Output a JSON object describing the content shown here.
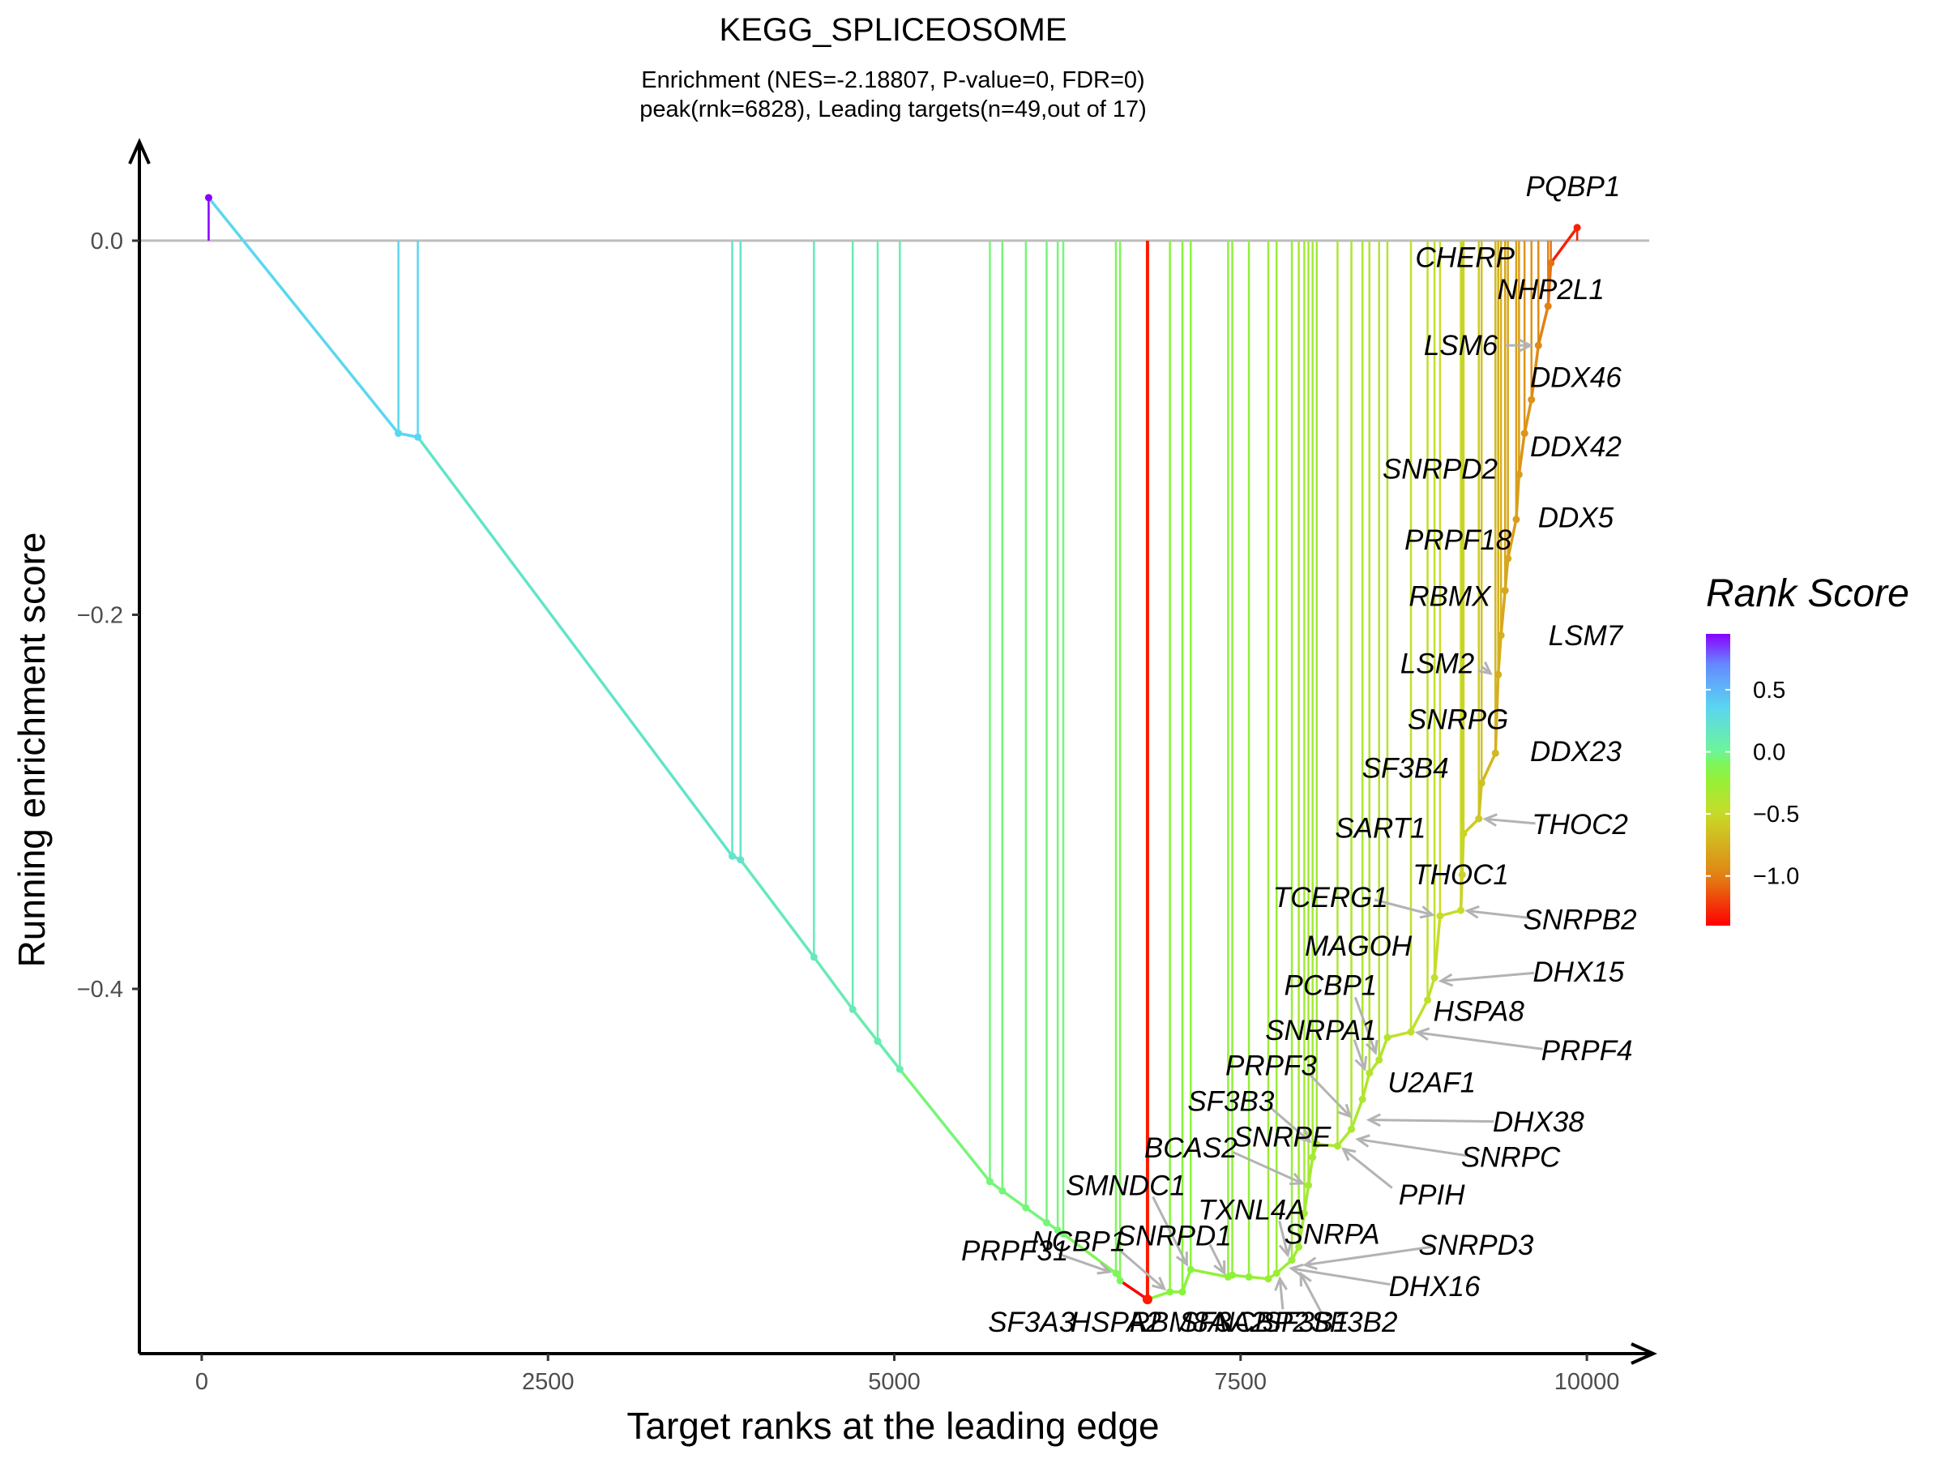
{
  "chart_data": {
    "type": "line",
    "title": "KEGG_SPLICEOSOME",
    "subtitle_line1": "Enrichment (NES=-2.18807, P-value=0, FDR=0)",
    "subtitle_line2": "peak(rnk=6828), Leading targets(n=49,out of 17)",
    "xlabel": "Target ranks at the leading edge",
    "ylabel": "Running enrichment score",
    "xlim": [
      -450,
      10450
    ],
    "ylim": [
      -0.595,
      0.055
    ],
    "xticks": [
      0,
      2500,
      5000,
      7500,
      10000
    ],
    "xtick_labels": [
      "0",
      "2500",
      "5000",
      "7500",
      "10000"
    ],
    "yticks": [
      0.0,
      -0.2,
      -0.4
    ],
    "ytick_labels": [
      "0.0",
      "−0.2",
      "−0.4"
    ],
    "baseline": 0.0,
    "peak": {
      "rank": 6828,
      "score": -0.566,
      "color": "#ff1a00"
    },
    "hits": [
      {
        "x": 50,
        "y": 0.023,
        "rank_score": 0.95
      },
      {
        "x": 1420,
        "y": -0.103,
        "rank_score": 0.35
      },
      {
        "x": 1560,
        "y": -0.105,
        "rank_score": 0.35
      },
      {
        "x": 3830,
        "y": -0.329,
        "rank_score": 0.2
      },
      {
        "x": 3890,
        "y": -0.331,
        "rank_score": 0.2
      },
      {
        "x": 4420,
        "y": -0.383,
        "rank_score": 0.15
      },
      {
        "x": 4700,
        "y": -0.411,
        "rank_score": 0.12
      },
      {
        "x": 4880,
        "y": -0.428,
        "rank_score": 0.1
      },
      {
        "x": 5040,
        "y": -0.443,
        "rank_score": 0.1
      },
      {
        "x": 5690,
        "y": -0.503,
        "rank_score": -0.05
      },
      {
        "x": 5780,
        "y": -0.508,
        "rank_score": -0.05
      },
      {
        "x": 5950,
        "y": -0.517,
        "rank_score": -0.05
      },
      {
        "x": 6100,
        "y": -0.525,
        "rank_score": -0.05
      },
      {
        "x": 6180,
        "y": -0.529,
        "rank_score": -0.05
      },
      {
        "x": 6220,
        "y": -0.531,
        "rank_score": -0.05
      },
      {
        "x": 6600,
        "y": -0.552,
        "rank_score": -0.1
      },
      {
        "x": 6630,
        "y": -0.556,
        "rank_score": -0.1
      },
      {
        "x": 6828,
        "y": -0.566,
        "rank_score": -1.4
      },
      {
        "x": 6990,
        "y": -0.562,
        "rank_score": -0.15
      },
      {
        "x": 7080,
        "y": -0.562,
        "rank_score": -0.15
      },
      {
        "x": 7140,
        "y": -0.55,
        "rank_score": -0.15
      },
      {
        "x": 7410,
        "y": -0.554,
        "rank_score": -0.2
      },
      {
        "x": 7440,
        "y": -0.553,
        "rank_score": -0.2
      },
      {
        "x": 7560,
        "y": -0.554,
        "rank_score": -0.2
      },
      {
        "x": 7700,
        "y": -0.555,
        "rank_score": -0.25
      },
      {
        "x": 7760,
        "y": -0.552,
        "rank_score": -0.25
      },
      {
        "x": 7870,
        "y": -0.545,
        "rank_score": -0.25
      },
      {
        "x": 7920,
        "y": -0.538,
        "rank_score": -0.3
      },
      {
        "x": 7960,
        "y": -0.52,
        "rank_score": -0.3
      },
      {
        "x": 7990,
        "y": -0.505,
        "rank_score": -0.3
      },
      {
        "x": 8020,
        "y": -0.49,
        "rank_score": -0.3
      },
      {
        "x": 8050,
        "y": -0.483,
        "rank_score": -0.3
      },
      {
        "x": 8200,
        "y": -0.484,
        "rank_score": -0.35
      },
      {
        "x": 8300,
        "y": -0.475,
        "rank_score": -0.35
      },
      {
        "x": 8380,
        "y": -0.459,
        "rank_score": -0.35
      },
      {
        "x": 8430,
        "y": -0.445,
        "rank_score": -0.4
      },
      {
        "x": 8500,
        "y": -0.438,
        "rank_score": -0.4
      },
      {
        "x": 8560,
        "y": -0.426,
        "rank_score": -0.4
      },
      {
        "x": 8730,
        "y": -0.423,
        "rank_score": -0.45
      },
      {
        "x": 8850,
        "y": -0.406,
        "rank_score": -0.45
      },
      {
        "x": 8900,
        "y": -0.394,
        "rank_score": -0.45
      },
      {
        "x": 8940,
        "y": -0.361,
        "rank_score": -0.5
      },
      {
        "x": 9090,
        "y": -0.358,
        "rank_score": -0.5
      },
      {
        "x": 9100,
        "y": -0.339,
        "rank_score": -0.55
      },
      {
        "x": 9110,
        "y": -0.317,
        "rank_score": -0.55
      },
      {
        "x": 9220,
        "y": -0.309,
        "rank_score": -0.6
      },
      {
        "x": 9240,
        "y": -0.29,
        "rank_score": -0.65
      },
      {
        "x": 9340,
        "y": -0.274,
        "rank_score": -0.7
      },
      {
        "x": 9360,
        "y": -0.232,
        "rank_score": -0.75
      },
      {
        "x": 9380,
        "y": -0.211,
        "rank_score": -0.75
      },
      {
        "x": 9410,
        "y": -0.187,
        "rank_score": -0.8
      },
      {
        "x": 9430,
        "y": -0.17,
        "rank_score": -0.8
      },
      {
        "x": 9490,
        "y": -0.149,
        "rank_score": -0.85
      },
      {
        "x": 9510,
        "y": -0.125,
        "rank_score": -0.85
      },
      {
        "x": 9550,
        "y": -0.103,
        "rank_score": -0.9
      },
      {
        "x": 9600,
        "y": -0.085,
        "rank_score": -0.9
      },
      {
        "x": 9650,
        "y": -0.056,
        "rank_score": -0.95
      },
      {
        "x": 9720,
        "y": -0.035,
        "rank_score": -1.0
      },
      {
        "x": 9740,
        "y": -0.012,
        "rank_score": -1.05
      },
      {
        "x": 9930,
        "y": 0.007,
        "rank_score": -1.3
      }
    ],
    "colorbar": {
      "title": "Rank Score",
      "min": -1.4,
      "max": 0.95,
      "ticks": [
        0.5,
        0.0,
        -0.5,
        -1.0
      ],
      "tick_labels": [
        "0.5",
        "0.0",
        "−0.5",
        "−1.0"
      ]
    },
    "gene_labels": [
      {
        "label": "PQBP1",
        "tx": 9900,
        "ty": 0.029,
        "ax": 9925,
        "ay": 0.009,
        "arrow": true
      },
      {
        "label": "CHERP",
        "tx": 9120,
        "ty": -0.009,
        "ax": 9730,
        "ay": -0.012,
        "arrow": false
      },
      {
        "label": "NHP2L1",
        "tx": 9740,
        "ty": -0.026,
        "ax": 9720,
        "ay": -0.034,
        "arrow": false
      },
      {
        "label": "LSM6",
        "tx": 9090,
        "ty": -0.056,
        "ax": 9640,
        "ay": -0.056,
        "arrow": true
      },
      {
        "label": "DDX46",
        "tx": 9920,
        "ty": -0.073,
        "ax": 9600,
        "ay": -0.085,
        "arrow": false
      },
      {
        "label": "DDX42",
        "tx": 9920,
        "ty": -0.11,
        "ax": 9550,
        "ay": -0.103,
        "arrow": false
      },
      {
        "label": "SNRPD2",
        "tx": 8940,
        "ty": -0.122,
        "ax": 9510,
        "ay": -0.125,
        "arrow": false
      },
      {
        "label": "DDX5",
        "tx": 9920,
        "ty": -0.148,
        "ax": 9490,
        "ay": -0.149,
        "arrow": false
      },
      {
        "label": "PRPF18",
        "tx": 9070,
        "ty": -0.16,
        "ax": 9420,
        "ay": -0.17,
        "arrow": false
      },
      {
        "label": "RBMX",
        "tx": 9010,
        "ty": -0.19,
        "ax": 9410,
        "ay": -0.187,
        "arrow": false
      },
      {
        "label": "LSM7",
        "tx": 9990,
        "ty": -0.211,
        "ax": 9380,
        "ay": -0.211,
        "arrow": false
      },
      {
        "label": "LSM2",
        "tx": 8920,
        "ty": -0.226,
        "ax": 9350,
        "ay": -0.232,
        "arrow": true
      },
      {
        "label": "SNRPG",
        "tx": 9070,
        "ty": -0.256,
        "ax": 9340,
        "ay": -0.262,
        "arrow": false
      },
      {
        "label": "DDX23",
        "tx": 9920,
        "ty": -0.273,
        "ax": 9340,
        "ay": -0.274,
        "arrow": false
      },
      {
        "label": "SF3B4",
        "tx": 8690,
        "ty": -0.282,
        "ax": 9240,
        "ay": -0.29,
        "arrow": false
      },
      {
        "label": "THOC2",
        "tx": 9950,
        "ty": -0.312,
        "ax": 9220,
        "ay": -0.309,
        "arrow": true
      },
      {
        "label": "SART1",
        "tx": 8510,
        "ty": -0.314,
        "ax": 9110,
        "ay": -0.317,
        "arrow": false
      },
      {
        "label": "THOC1",
        "tx": 9090,
        "ty": -0.339,
        "ax": 9100,
        "ay": -0.339,
        "arrow": false
      },
      {
        "label": "TCERG1",
        "tx": 8150,
        "ty": -0.351,
        "ax": 8930,
        "ay": -0.361,
        "arrow": true
      },
      {
        "label": "SNRPB2",
        "tx": 9950,
        "ty": -0.363,
        "ax": 9090,
        "ay": -0.358,
        "arrow": true
      },
      {
        "label": "MAGOH",
        "tx": 8350,
        "ty": -0.377,
        "ax": 8940,
        "ay": -0.361,
        "arrow": false
      },
      {
        "label": "DHX15",
        "tx": 9940,
        "ty": -0.391,
        "ax": 8900,
        "ay": -0.396,
        "arrow": true
      },
      {
        "label": "PCBP1",
        "tx": 8150,
        "ty": -0.398,
        "ax": 8500,
        "ay": -0.437,
        "arrow": true
      },
      {
        "label": "HSPA8",
        "tx": 9220,
        "ty": -0.412,
        "ax": 8850,
        "ay": -0.406,
        "arrow": false
      },
      {
        "label": "SNRPA1",
        "tx": 8080,
        "ty": -0.422,
        "ax": 8430,
        "ay": -0.445,
        "arrow": true
      },
      {
        "label": "PRPF4",
        "tx": 10000,
        "ty": -0.433,
        "ax": 8730,
        "ay": -0.423,
        "arrow": true
      },
      {
        "label": "PRPF3",
        "tx": 7720,
        "ty": -0.441,
        "ax": 8330,
        "ay": -0.47,
        "arrow": true
      },
      {
        "label": "U2AF1",
        "tx": 8880,
        "ty": -0.45,
        "ax": 8560,
        "ay": -0.426,
        "arrow": false
      },
      {
        "label": "SF3B3",
        "tx": 7430,
        "ty": -0.46,
        "ax": 8040,
        "ay": -0.483,
        "arrow": true
      },
      {
        "label": "DHX38",
        "tx": 9650,
        "ty": -0.471,
        "ax": 8380,
        "ay": -0.47,
        "arrow": true
      },
      {
        "label": "SNRPE",
        "tx": 7800,
        "ty": -0.479,
        "ax": 8030,
        "ay": -0.49,
        "arrow": true
      },
      {
        "label": "BCAS2",
        "tx": 7140,
        "ty": -0.485,
        "ax": 7990,
        "ay": -0.505,
        "arrow": true
      },
      {
        "label": "SNRPC",
        "tx": 9450,
        "ty": -0.49,
        "ax": 8300,
        "ay": -0.48,
        "arrow": true
      },
      {
        "label": "PPIH",
        "tx": 8880,
        "ty": -0.51,
        "ax": 8200,
        "ay": -0.484,
        "arrow": true
      },
      {
        "label": "SMNDC1",
        "tx": 6670,
        "ty": -0.505,
        "ax": 7140,
        "ay": -0.55,
        "arrow": true
      },
      {
        "label": "TXNL4A",
        "tx": 7580,
        "ty": -0.518,
        "ax": 7870,
        "ay": -0.545,
        "arrow": true
      },
      {
        "label": "NCBP1",
        "tx": 6330,
        "ty": -0.535,
        "ax": 6990,
        "ay": -0.562,
        "arrow": true
      },
      {
        "label": "SNRPA",
        "tx": 8160,
        "ty": -0.531,
        "ax": 7910,
        "ay": -0.545,
        "arrow": true
      },
      {
        "label": "SNRPD1",
        "tx": 7020,
        "ty": -0.532,
        "ax": 7420,
        "ay": -0.554,
        "arrow": true
      },
      {
        "label": "SNRPD3",
        "tx": 9200,
        "ty": -0.537,
        "ax": 7920,
        "ay": -0.548,
        "arrow": true
      },
      {
        "label": "PRPF31",
        "tx": 5870,
        "ty": -0.54,
        "ax": 6600,
        "ay": -0.552,
        "arrow": true
      },
      {
        "label": "DHX16",
        "tx": 8900,
        "ty": -0.559,
        "ax": 7820,
        "ay": -0.549,
        "arrow": true
      },
      {
        "label": "SF3A3",
        "tx": 5990,
        "ty": -0.578,
        "ax": 6630,
        "ay": -0.556,
        "arrow": false
      },
      {
        "label": "HSPA2",
        "tx": 6600,
        "ty": -0.578,
        "ax": 6828,
        "ay": -0.566,
        "arrow": false
      },
      {
        "label": "RBM8A",
        "tx": 7050,
        "ty": -0.578,
        "ax": 6990,
        "ay": -0.562,
        "arrow": false
      },
      {
        "label": "SF3A2",
        "tx": 7370,
        "ty": -0.578,
        "ax": 7080,
        "ay": -0.562,
        "arrow": false
      },
      {
        "label": "NCBP2",
        "tx": 7650,
        "ty": -0.578,
        "ax": 7700,
        "ay": -0.555,
        "arrow": true
      },
      {
        "label": "SF3B1",
        "tx": 7970,
        "ty": -0.578,
        "ax": 7760,
        "ay": -0.552,
        "arrow": true
      },
      {
        "label": "SF3B2",
        "tx": 8320,
        "ty": -0.578,
        "ax": 7900,
        "ay": -0.55,
        "arrow": true
      }
    ]
  }
}
